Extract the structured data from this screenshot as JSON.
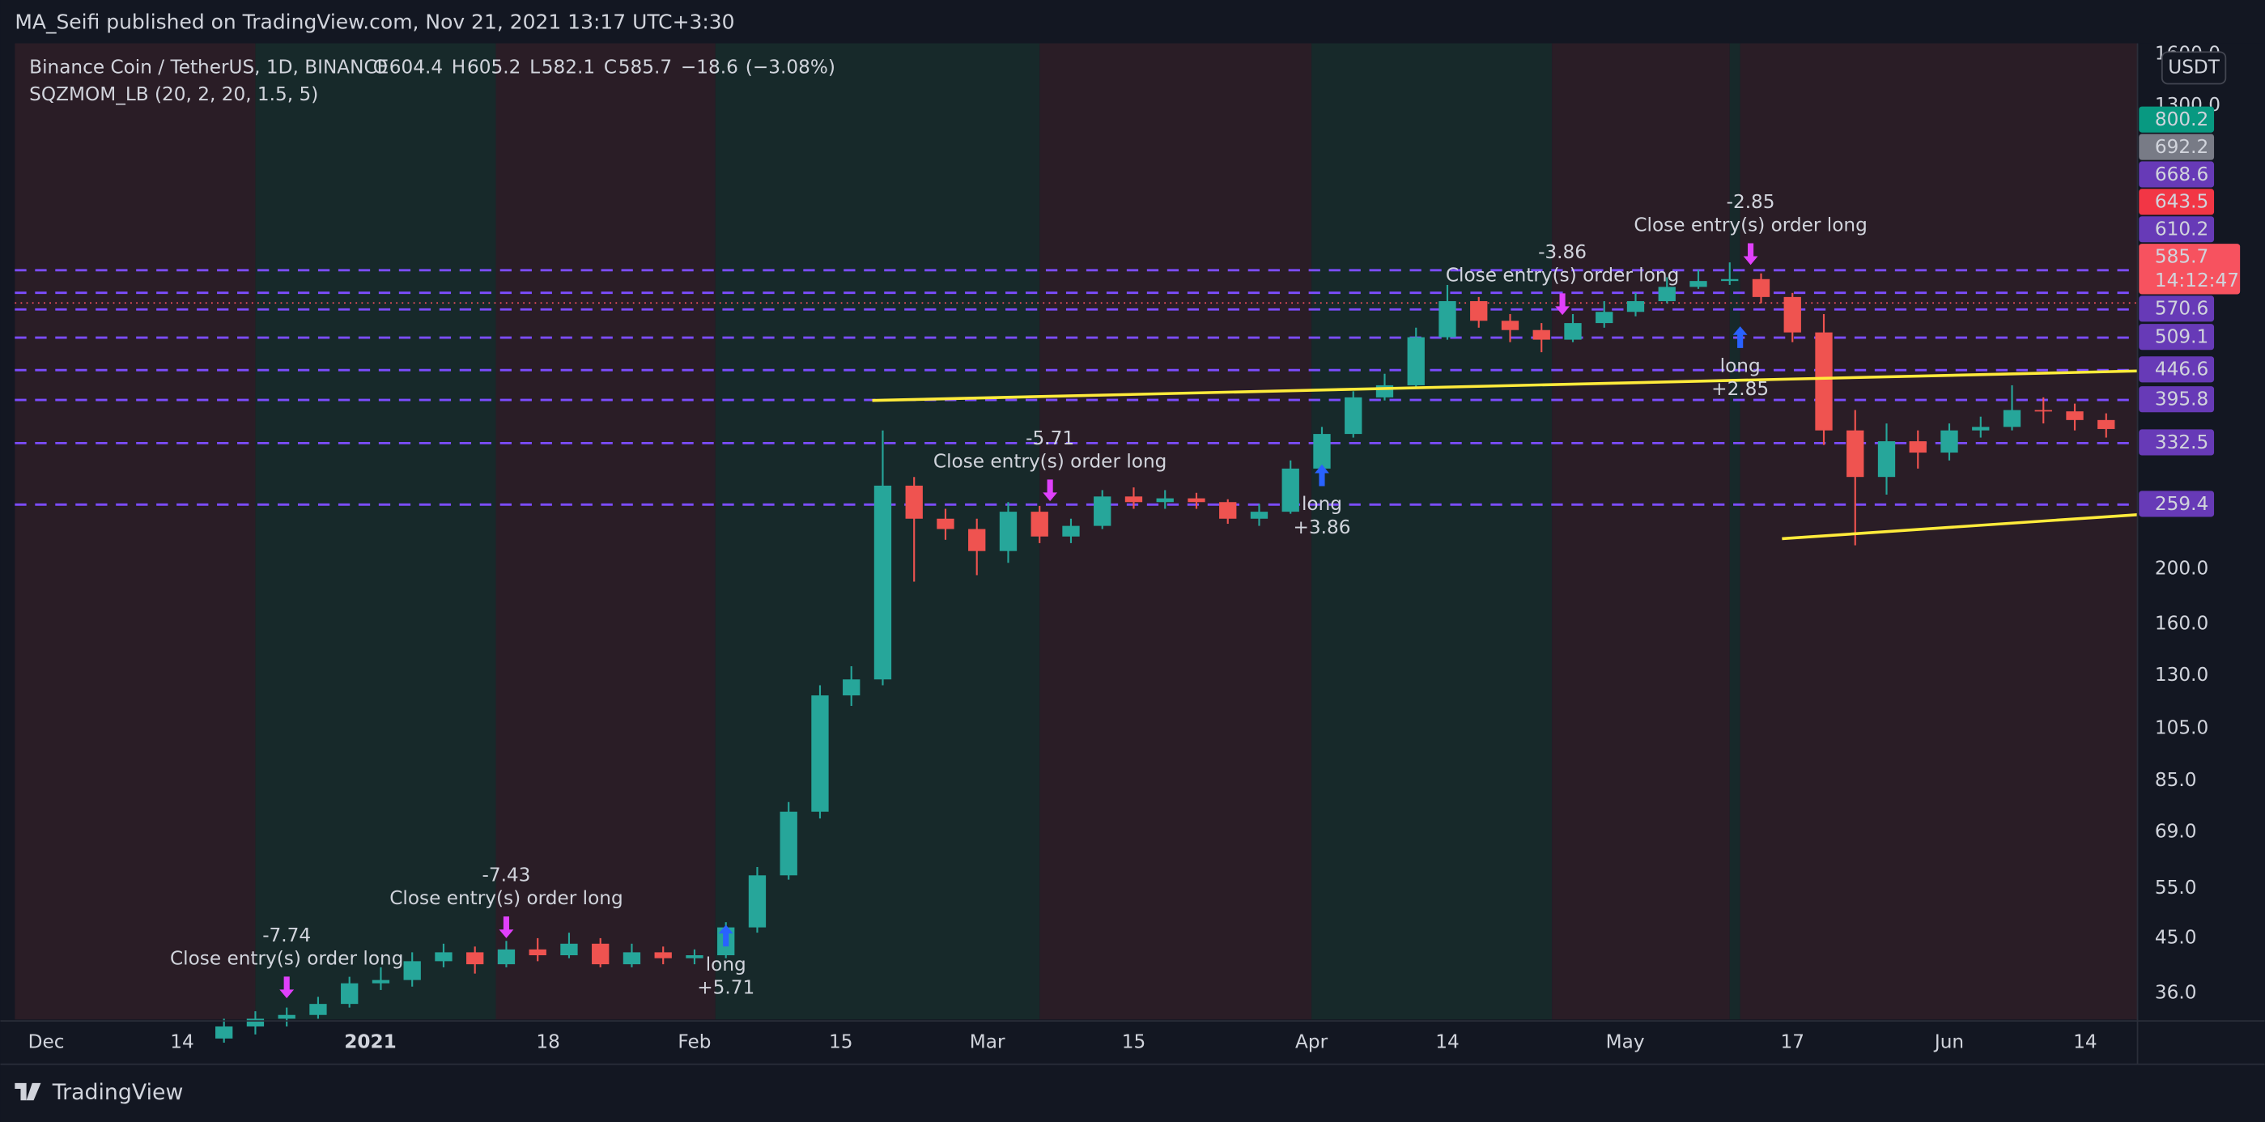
{
  "header": {
    "published": "MA_Seifi published on TradingView.com, Nov 21, 2021 13:17 UTC+3:30",
    "symbol": "Binance Coin / TetherUS, 1D, BINANCE",
    "ohlc": [
      {
        "key": "O",
        "value": 604.4
      },
      {
        "key": "H",
        "value": 605.2
      },
      {
        "key": "L",
        "value": 582.1
      },
      {
        "key": "C",
        "value": 585.7
      }
    ],
    "change": {
      "value": -18.6,
      "label": "−18.6"
    },
    "change_pct": {
      "value": -3.08,
      "label": "(−3.08%)"
    },
    "indicator": "SQZMOM_LB (20, 2, 20, 1.5, 5)",
    "currency": "USDT"
  },
  "footer": {
    "brand": "TradingView"
  },
  "chart_data": {
    "type": "candlestick",
    "log": true,
    "grid": true,
    "up_color": "#26a69a",
    "down_color": "#ef5350",
    "x": [
      "2020-12-18",
      "2020-12-21",
      "2020-12-24",
      "2020-12-27",
      "2020-12-30",
      "2021-01-02",
      "2021-01-05",
      "2021-01-08",
      "2021-01-11",
      "2021-01-14",
      "2021-01-17",
      "2021-01-20",
      "2021-01-23",
      "2021-01-26",
      "2021-01-29",
      "2021-02-01",
      "2021-02-04",
      "2021-02-07",
      "2021-02-10",
      "2021-02-13",
      "2021-02-16",
      "2021-02-19",
      "2021-02-22",
      "2021-02-25",
      "2021-02-28",
      "2021-03-03",
      "2021-03-06",
      "2021-03-09",
      "2021-03-12",
      "2021-03-15",
      "2021-03-18",
      "2021-03-21",
      "2021-03-24",
      "2021-03-27",
      "2021-03-30",
      "2021-04-02",
      "2021-04-05",
      "2021-04-08",
      "2021-04-11",
      "2021-04-14",
      "2021-04-17",
      "2021-04-20",
      "2021-04-23",
      "2021-04-26",
      "2021-04-29",
      "2021-05-02",
      "2021-05-05",
      "2021-05-08",
      "2021-05-11",
      "2021-05-14",
      "2021-05-17",
      "2021-05-20",
      "2021-05-23",
      "2021-05-26",
      "2021-05-29",
      "2021-06-01",
      "2021-06-04",
      "2021-06-07",
      "2021-06-10",
      "2021-06-13",
      "2021-06-16"
    ],
    "open": [
      30,
      31.5,
      32.5,
      33,
      34.5,
      37.5,
      38,
      41,
      42.5,
      40.5,
      43,
      42,
      44,
      40.5,
      42.5,
      41.5,
      42,
      47,
      58,
      75,
      120,
      128,
      280,
      245,
      235,
      215,
      252,
      228,
      238,
      268,
      262,
      266,
      262,
      245,
      252,
      300,
      345,
      400,
      420,
      510,
      590,
      545,
      525,
      505,
      540,
      565,
      590,
      625,
      640,
      645,
      600,
      520,
      350,
      290,
      335,
      320,
      350,
      355,
      380,
      378,
      365
    ],
    "high": [
      32.5,
      33.5,
      34,
      35.5,
      38.5,
      40,
      42.5,
      44,
      43.5,
      44.5,
      45,
      46,
      45,
      44,
      43.5,
      43,
      48,
      60,
      78,
      125,
      135,
      350,
      290,
      255,
      245,
      262,
      258,
      245,
      275,
      278,
      275,
      272,
      265,
      260,
      310,
      355,
      410,
      440,
      530,
      630,
      600,
      560,
      540,
      560,
      590,
      610,
      650,
      670,
      690,
      660,
      610,
      560,
      380,
      360,
      350,
      360,
      370,
      420,
      400,
      390,
      375
    ],
    "low": [
      29.5,
      30.5,
      31.5,
      32.5,
      34,
      36.5,
      37,
      40,
      39,
      40,
      41,
      41.5,
      40,
      40,
      40.5,
      40.5,
      41.5,
      46,
      57,
      73,
      115,
      125,
      190,
      225,
      195,
      205,
      222,
      222,
      235,
      255,
      255,
      255,
      240,
      238,
      250,
      290,
      340,
      395,
      415,
      505,
      530,
      500,
      480,
      500,
      530,
      555,
      585,
      620,
      630,
      585,
      500,
      330,
      220,
      270,
      300,
      310,
      340,
      350,
      360,
      350,
      340
    ],
    "close": [
      31.5,
      32.5,
      33,
      34.5,
      37.5,
      38,
      41,
      42.5,
      40.5,
      43,
      42,
      44,
      40.5,
      42.5,
      41.5,
      42,
      47,
      58,
      75,
      120,
      128,
      280,
      245,
      235,
      215,
      252,
      228,
      238,
      268,
      262,
      266,
      262,
      245,
      252,
      300,
      345,
      400,
      420,
      510,
      590,
      545,
      525,
      505,
      540,
      565,
      590,
      625,
      640,
      645,
      600,
      520,
      350,
      290,
      335,
      320,
      350,
      355,
      380,
      378,
      365,
      352
    ],
    "xlim": [
      "2020-11-28",
      "2021-06-19"
    ],
    "ylim": [
      32.4,
      1672
    ],
    "yticks": [
      {
        "value": 36,
        "label": "36.0"
      },
      {
        "value": 45,
        "label": "45.0"
      },
      {
        "value": 55,
        "label": "55.0"
      },
      {
        "value": 69,
        "label": "69.0"
      },
      {
        "value": 85,
        "label": "85.0"
      },
      {
        "value": 105,
        "label": "105.0"
      },
      {
        "value": 130,
        "label": "130.0"
      },
      {
        "value": 160,
        "label": "160.0"
      },
      {
        "value": 200,
        "label": "200.0"
      },
      {
        "value": 1300,
        "label": "1300.0"
      },
      {
        "value": 1600,
        "label": "1600.0"
      }
    ],
    "xticks": [
      {
        "value": "2020-12-01",
        "label": "Dec"
      },
      {
        "value": "2020-12-14",
        "label": "14"
      },
      {
        "value": "2021-01-01",
        "label": "2021"
      },
      {
        "value": "2021-01-18",
        "label": "18"
      },
      {
        "value": "2021-02-01",
        "label": "Feb"
      },
      {
        "value": "2021-02-15",
        "label": "15"
      },
      {
        "value": "2021-03-01",
        "label": "Mar"
      },
      {
        "value": "2021-03-15",
        "label": "15"
      },
      {
        "value": "2021-04-01",
        "label": "Apr"
      },
      {
        "value": "2021-04-14",
        "label": "14"
      },
      {
        "value": "2021-05-01",
        "label": "May"
      },
      {
        "value": "2021-05-17",
        "label": "17"
      },
      {
        "value": "2021-06-01",
        "label": "Jun"
      },
      {
        "value": "2021-06-14",
        "label": "14"
      }
    ],
    "zones": [
      {
        "start": "2020-11-28",
        "end": "2020-12-21",
        "color": "#2a1d26"
      },
      {
        "start": "2020-12-21",
        "end": "2021-01-13",
        "color": "#17292a"
      },
      {
        "start": "2021-01-13",
        "end": "2021-02-03",
        "color": "#2a1d26"
      },
      {
        "start": "2021-02-03",
        "end": "2021-03-06",
        "color": "#17292a"
      },
      {
        "start": "2021-03-06",
        "end": "2021-04-01",
        "color": "#2a1d26"
      },
      {
        "start": "2021-04-01",
        "end": "2021-04-24",
        "color": "#17292a"
      },
      {
        "start": "2021-04-24",
        "end": "2021-05-11",
        "color": "#2a1d26"
      },
      {
        "start": "2021-05-11",
        "end": "2021-05-12",
        "color": "#17292a"
      },
      {
        "start": "2021-05-12",
        "end": "2021-06-19",
        "color": "#2a1d26"
      }
    ],
    "trendlines": [
      {
        "start": [
          "2021-02-18",
          395
        ],
        "end": [
          "2021-06-19",
          445
        ],
        "color": "#ffeb3b"
      },
      {
        "start": [
          "2021-05-16",
          226
        ],
        "end": [
          "2021-06-19",
          249
        ],
        "color": "#ffeb3b"
      }
    ],
    "levels_color": "#7c4dff",
    "price_labels": [
      {
        "value": 800.2,
        "color": "#089981"
      },
      {
        "value": 692.2,
        "color": "#787b86"
      },
      {
        "value": 668.6,
        "color": "#673ab7",
        "level": true
      },
      {
        "value": 643.5,
        "color": "#f23645"
      },
      {
        "value": 610.2,
        "color": "#673ab7",
        "level": true
      },
      {
        "value": 585.7,
        "color": "#f7525f",
        "countdown": "14:12:47"
      },
      {
        "value": 570.6,
        "color": "#673ab7",
        "level": true
      },
      {
        "value": 509.1,
        "color": "#673ab7",
        "level": true
      },
      {
        "value": 446.6,
        "color": "#673ab7",
        "level": true
      },
      {
        "value": 395.8,
        "color": "#673ab7",
        "level": true
      },
      {
        "value": 332.5,
        "color": "#673ab7",
        "level": true
      },
      {
        "value": 259.4,
        "color": "#673ab7",
        "level": true
      }
    ],
    "signals": [
      {
        "kind": "close",
        "date": "2020-12-24",
        "price": 35.3,
        "text": "Close entry(s) order long",
        "profit": "-7.74"
      },
      {
        "kind": "close",
        "date": "2021-01-14",
        "price": 45,
        "text": "Close entry(s) order long",
        "profit": "-7.43"
      },
      {
        "kind": "long",
        "date": "2021-02-04",
        "price": 47.5,
        "text": "long",
        "profit": "+5.71"
      },
      {
        "kind": "close",
        "date": "2021-03-07",
        "price": 263,
        "text": "Close entry(s) order long",
        "profit": "-5.71"
      },
      {
        "kind": "long",
        "date": "2021-04-02",
        "price": 305,
        "text": "long",
        "profit": "+3.86"
      },
      {
        "kind": "close",
        "date": "2021-04-25",
        "price": 558,
        "text": "Close entry(s) order long",
        "profit": "-3.86"
      },
      {
        "kind": "close",
        "date": "2021-05-13",
        "price": 683,
        "text": "Close entry(s) order long",
        "profit": "-2.85"
      },
      {
        "kind": "long",
        "date": "2021-05-12",
        "price": 533,
        "text": "long",
        "profit": "+2.85"
      }
    ]
  }
}
